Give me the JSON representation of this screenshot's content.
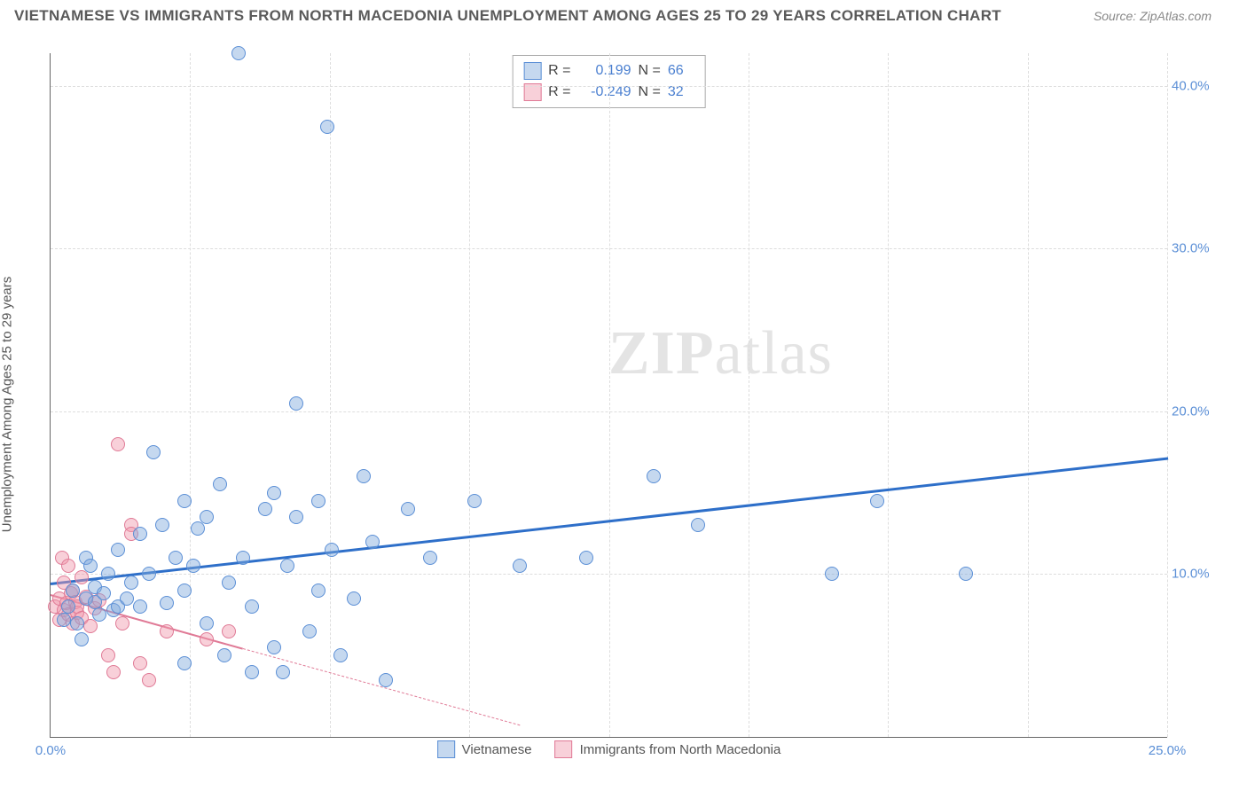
{
  "title": "VIETNAMESE VS IMMIGRANTS FROM NORTH MACEDONIA UNEMPLOYMENT AMONG AGES 25 TO 29 YEARS CORRELATION CHART",
  "source": "Source: ZipAtlas.com",
  "watermark_zip": "ZIP",
  "watermark_atlas": "atlas",
  "chart": {
    "type": "scatter",
    "y_axis_label": "Unemployment Among Ages 25 to 29 years",
    "xlim": [
      0,
      25
    ],
    "ylim": [
      0,
      42
    ],
    "x_ticks": [
      0,
      25
    ],
    "x_tick_labels": [
      "0.0%",
      "25.0%"
    ],
    "y_ticks": [
      10,
      20,
      30,
      40
    ],
    "y_tick_labels": [
      "10.0%",
      "20.0%",
      "30.0%",
      "40.0%"
    ],
    "x_minor_ticks": [
      0,
      3.125,
      6.25,
      9.375,
      12.5,
      15.625,
      18.75,
      21.875,
      25
    ],
    "background_color": "#ffffff",
    "grid_color": "#dddddd",
    "colors": {
      "blue_fill": "rgba(127,169,220,0.45)",
      "blue_stroke": "#5b8fd6",
      "pink_fill": "rgba(240,150,170,0.45)",
      "pink_stroke": "#e07a96",
      "tick_text": "#5b8fd6"
    },
    "series": [
      {
        "name": "Vietnamese",
        "color_key": "blue",
        "R": "0.199",
        "N": "66",
        "regression": {
          "x0": 0,
          "y0": 9.5,
          "x1": 25,
          "y1": 17.2,
          "solid_until_x": 25,
          "stroke": "#2e6fc9",
          "width": 3
        },
        "points": [
          [
            0.3,
            7.2
          ],
          [
            0.4,
            8.0
          ],
          [
            0.5,
            9.0
          ],
          [
            0.6,
            7.0
          ],
          [
            0.7,
            6.0
          ],
          [
            0.8,
            8.5
          ],
          [
            0.8,
            11.0
          ],
          [
            0.9,
            10.5
          ],
          [
            1.0,
            8.3
          ],
          [
            1.0,
            9.2
          ],
          [
            1.1,
            7.5
          ],
          [
            1.2,
            8.8
          ],
          [
            1.3,
            10.0
          ],
          [
            1.4,
            7.8
          ],
          [
            1.5,
            8.0
          ],
          [
            1.5,
            11.5
          ],
          [
            1.7,
            8.5
          ],
          [
            1.8,
            9.5
          ],
          [
            2.0,
            12.5
          ],
          [
            2.0,
            8.0
          ],
          [
            2.2,
            10.0
          ],
          [
            2.3,
            17.5
          ],
          [
            2.5,
            13.0
          ],
          [
            2.6,
            8.2
          ],
          [
            2.8,
            11.0
          ],
          [
            3.0,
            9.0
          ],
          [
            3.0,
            14.5
          ],
          [
            3.2,
            10.5
          ],
          [
            3.3,
            12.8
          ],
          [
            3.5,
            13.5
          ],
          [
            3.5,
            7.0
          ],
          [
            3.8,
            15.5
          ],
          [
            3.9,
            5.0
          ],
          [
            4.0,
            9.5
          ],
          [
            4.2,
            42.0
          ],
          [
            4.3,
            11.0
          ],
          [
            4.5,
            8.0
          ],
          [
            4.8,
            14.0
          ],
          [
            5.0,
            5.5
          ],
          [
            5.0,
            15.0
          ],
          [
            5.3,
            10.5
          ],
          [
            5.5,
            13.5
          ],
          [
            5.5,
            20.5
          ],
          [
            5.8,
            6.5
          ],
          [
            6.0,
            9.0
          ],
          [
            6.0,
            14.5
          ],
          [
            6.2,
            37.5
          ],
          [
            6.3,
            11.5
          ],
          [
            6.5,
            5.0
          ],
          [
            6.8,
            8.5
          ],
          [
            7.0,
            16.0
          ],
          [
            7.2,
            12.0
          ],
          [
            7.5,
            3.5
          ],
          [
            8.0,
            14.0
          ],
          [
            8.5,
            11.0
          ],
          [
            9.5,
            14.5
          ],
          [
            10.5,
            10.5
          ],
          [
            12.0,
            11.0
          ],
          [
            13.5,
            16.0
          ],
          [
            14.5,
            13.0
          ],
          [
            17.5,
            10.0
          ],
          [
            18.5,
            14.5
          ],
          [
            20.5,
            10.0
          ],
          [
            3.0,
            4.5
          ],
          [
            4.5,
            4.0
          ],
          [
            5.2,
            4.0
          ]
        ]
      },
      {
        "name": "Immigrants from North Macedonia",
        "color_key": "pink",
        "R": "-0.249",
        "N": "32",
        "regression": {
          "x0": 0,
          "y0": 8.8,
          "x1": 4.3,
          "y1": 5.5,
          "dash_to_x": 10.5,
          "dash_to_y": 0.8,
          "stroke": "#e07a96",
          "width": 2.5
        },
        "points": [
          [
            0.1,
            8.0
          ],
          [
            0.2,
            7.2
          ],
          [
            0.2,
            8.5
          ],
          [
            0.25,
            11.0
          ],
          [
            0.3,
            7.8
          ],
          [
            0.3,
            9.5
          ],
          [
            0.35,
            8.2
          ],
          [
            0.4,
            7.5
          ],
          [
            0.4,
            10.5
          ],
          [
            0.45,
            8.8
          ],
          [
            0.5,
            7.0
          ],
          [
            0.5,
            9.0
          ],
          [
            0.55,
            8.3
          ],
          [
            0.6,
            7.6
          ],
          [
            0.6,
            8.0
          ],
          [
            0.7,
            9.8
          ],
          [
            0.7,
            7.3
          ],
          [
            0.8,
            8.6
          ],
          [
            0.9,
            6.8
          ],
          [
            1.0,
            7.9
          ],
          [
            1.1,
            8.4
          ],
          [
            1.3,
            5.0
          ],
          [
            1.4,
            4.0
          ],
          [
            1.5,
            18.0
          ],
          [
            1.6,
            7.0
          ],
          [
            1.8,
            13.0
          ],
          [
            1.8,
            12.5
          ],
          [
            2.0,
            4.5
          ],
          [
            2.2,
            3.5
          ],
          [
            2.6,
            6.5
          ],
          [
            3.5,
            6.0
          ],
          [
            4.0,
            6.5
          ]
        ]
      }
    ],
    "legend_top": {
      "R_label": "R =",
      "N_label": "N ="
    },
    "legend_bottom": [
      {
        "label": "Vietnamese",
        "swatch": "blue"
      },
      {
        "label": "Immigrants from North Macedonia",
        "swatch": "pink"
      }
    ]
  }
}
